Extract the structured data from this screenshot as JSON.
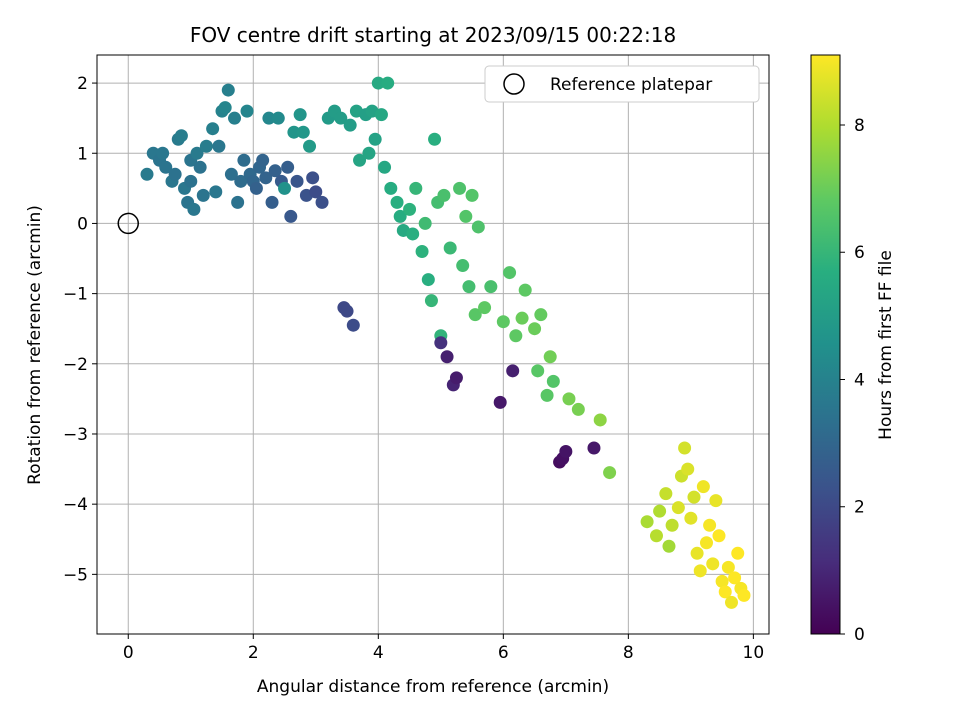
{
  "chart_data": {
    "type": "scatter",
    "title": "FOV centre drift starting at 2023/09/15 00:22:18",
    "xlabel": "Angular distance from reference (arcmin)",
    "ylabel": "Rotation from reference (arcmin)",
    "xlim": [
      -0.5,
      10.25
    ],
    "ylim": [
      -5.85,
      2.4
    ],
    "xticks": [
      0,
      2,
      4,
      6,
      8,
      10
    ],
    "yticks": [
      2,
      1,
      0,
      -1,
      -2,
      -3,
      -4,
      -5
    ],
    "grid": true,
    "legend": {
      "position": "top-right",
      "entries": [
        "Reference platepar"
      ]
    },
    "reference_point": {
      "x": 0,
      "y": 0
    },
    "colorbar": {
      "label": "Hours from first FF file",
      "range": [
        0,
        9.1
      ],
      "ticks": [
        0,
        2,
        4,
        6,
        8
      ],
      "colormap": "viridis"
    },
    "points": [
      [
        0.3,
        0.7,
        3.7
      ],
      [
        0.4,
        1.0,
        3.6
      ],
      [
        0.5,
        0.9,
        3.5
      ],
      [
        0.55,
        1.0,
        3.6
      ],
      [
        0.6,
        0.8,
        3.5
      ],
      [
        0.7,
        0.6,
        3.6
      ],
      [
        0.75,
        0.7,
        3.4
      ],
      [
        0.8,
        1.2,
        3.7
      ],
      [
        0.85,
        1.25,
        3.8
      ],
      [
        0.9,
        0.5,
        3.6
      ],
      [
        0.95,
        0.3,
        3.5
      ],
      [
        1.0,
        0.9,
        3.5
      ],
      [
        1.0,
        0.6,
        3.4
      ],
      [
        1.05,
        0.2,
        3.6
      ],
      [
        1.1,
        1.0,
        3.7
      ],
      [
        1.15,
        0.8,
        3.4
      ],
      [
        1.2,
        0.4,
        3.5
      ],
      [
        1.25,
        1.1,
        3.8
      ],
      [
        1.35,
        1.35,
        3.9
      ],
      [
        1.4,
        0.45,
        3.6
      ],
      [
        1.45,
        1.1,
        3.6
      ],
      [
        1.5,
        1.6,
        4.0
      ],
      [
        1.55,
        1.65,
        4.1
      ],
      [
        1.6,
        1.9,
        3.9
      ],
      [
        1.65,
        0.7,
        3.3
      ],
      [
        1.7,
        1.5,
        3.9
      ],
      [
        1.75,
        0.3,
        3.4
      ],
      [
        1.8,
        0.6,
        3.2
      ],
      [
        1.85,
        0.9,
        3.2
      ],
      [
        1.9,
        1.6,
        4.1
      ],
      [
        1.95,
        0.7,
        3.1
      ],
      [
        2.0,
        0.6,
        3.0
      ],
      [
        2.05,
        0.5,
        2.8
      ],
      [
        2.1,
        0.8,
        3.0
      ],
      [
        2.15,
        0.9,
        2.9
      ],
      [
        2.2,
        0.65,
        2.9
      ],
      [
        2.25,
        1.5,
        4.2
      ],
      [
        2.3,
        0.3,
        2.7
      ],
      [
        2.35,
        0.75,
        2.8
      ],
      [
        2.4,
        1.5,
        4.3
      ],
      [
        2.45,
        0.6,
        2.6
      ],
      [
        2.5,
        0.5,
        4.6
      ],
      [
        2.55,
        0.8,
        2.7
      ],
      [
        2.6,
        0.1,
        2.5
      ],
      [
        2.65,
        1.3,
        4.7
      ],
      [
        2.7,
        0.6,
        2.4
      ],
      [
        2.75,
        1.55,
        4.7
      ],
      [
        2.8,
        1.3,
        4.8
      ],
      [
        2.85,
        0.4,
        2.3
      ],
      [
        2.9,
        1.1,
        4.9
      ],
      [
        2.95,
        0.65,
        2.2
      ],
      [
        3.0,
        0.45,
        2.1
      ],
      [
        3.1,
        0.3,
        2.2
      ],
      [
        3.2,
        1.5,
        4.9
      ],
      [
        3.3,
        1.6,
        5.0
      ],
      [
        3.4,
        1.5,
        5.0
      ],
      [
        3.45,
        -1.2,
        2.0
      ],
      [
        3.5,
        -1.25,
        2.0
      ],
      [
        3.55,
        1.4,
        5.0
      ],
      [
        3.6,
        -1.45,
        2.1
      ],
      [
        3.65,
        1.6,
        5.2
      ],
      [
        3.7,
        0.9,
        5.3
      ],
      [
        3.8,
        1.55,
        5.1
      ],
      [
        3.85,
        1.0,
        5.3
      ],
      [
        3.9,
        1.6,
        5.2
      ],
      [
        3.95,
        1.2,
        5.2
      ],
      [
        4.0,
        2.0,
        5.5
      ],
      [
        4.05,
        1.55,
        5.4
      ],
      [
        4.1,
        0.8,
        5.4
      ],
      [
        4.15,
        2.0,
        5.6
      ],
      [
        4.2,
        0.5,
        5.6
      ],
      [
        4.3,
        0.3,
        5.7
      ],
      [
        4.35,
        0.1,
        5.6
      ],
      [
        4.4,
        -0.1,
        5.5
      ],
      [
        4.5,
        0.2,
        5.8
      ],
      [
        4.55,
        -0.15,
        5.7
      ],
      [
        4.6,
        0.5,
        6.0
      ],
      [
        4.7,
        -0.4,
        5.8
      ],
      [
        4.75,
        0.0,
        6.2
      ],
      [
        4.8,
        -0.8,
        5.7
      ],
      [
        4.85,
        -1.1,
        6.0
      ],
      [
        4.9,
        1.2,
        5.7
      ],
      [
        4.95,
        0.3,
        6.3
      ],
      [
        5.0,
        -1.6,
        5.9
      ],
      [
        5.0,
        -1.7,
        1.3
      ],
      [
        5.05,
        0.4,
        6.4
      ],
      [
        5.1,
        -1.9,
        0.8
      ],
      [
        5.15,
        -0.35,
        6.1
      ],
      [
        5.2,
        -2.3,
        0.9
      ],
      [
        5.25,
        -2.2,
        0.7
      ],
      [
        5.3,
        0.5,
        6.5
      ],
      [
        5.35,
        -0.6,
        6.3
      ],
      [
        5.4,
        0.1,
        6.6
      ],
      [
        5.45,
        -0.9,
        6.3
      ],
      [
        5.5,
        0.4,
        6.6
      ],
      [
        5.55,
        -1.3,
        6.7
      ],
      [
        5.6,
        -0.05,
        6.5
      ],
      [
        5.7,
        -1.2,
        6.8
      ],
      [
        5.8,
        -0.9,
        6.4
      ],
      [
        5.95,
        -2.55,
        0.6
      ],
      [
        6.0,
        -1.4,
        6.8
      ],
      [
        6.1,
        -0.7,
        6.6
      ],
      [
        6.15,
        -2.1,
        0.8
      ],
      [
        6.2,
        -1.6,
        6.8
      ],
      [
        6.3,
        -1.35,
        7.0
      ],
      [
        6.35,
        -0.95,
        6.8
      ],
      [
        6.5,
        -1.5,
        7.0
      ],
      [
        6.55,
        -2.1,
        6.7
      ],
      [
        6.6,
        -1.3,
        6.9
      ],
      [
        6.7,
        -2.45,
        6.7
      ],
      [
        6.75,
        -1.9,
        7.1
      ],
      [
        6.8,
        -2.25,
        6.6
      ],
      [
        6.9,
        -3.4,
        0.3
      ],
      [
        6.95,
        -3.35,
        0.4
      ],
      [
        7.0,
        -3.25,
        0.5
      ],
      [
        7.05,
        -2.5,
        7.2
      ],
      [
        7.2,
        -2.65,
        7.2
      ],
      [
        7.45,
        -3.2,
        0.6
      ],
      [
        7.55,
        -2.8,
        7.5
      ],
      [
        7.7,
        -3.55,
        7.3
      ],
      [
        8.3,
        -4.25,
        7.9
      ],
      [
        8.45,
        -4.45,
        8.1
      ],
      [
        8.5,
        -4.1,
        8.0
      ],
      [
        8.6,
        -3.85,
        8.3
      ],
      [
        8.65,
        -4.6,
        7.8
      ],
      [
        8.7,
        -4.3,
        8.2
      ],
      [
        8.8,
        -4.05,
        8.6
      ],
      [
        8.85,
        -3.6,
        8.4
      ],
      [
        8.9,
        -3.2,
        8.5
      ],
      [
        8.95,
        -3.5,
        8.6
      ],
      [
        9.0,
        -4.2,
        8.7
      ],
      [
        9.05,
        -3.9,
        8.5
      ],
      [
        9.1,
        -4.7,
        8.8
      ],
      [
        9.15,
        -4.95,
        8.9
      ],
      [
        9.2,
        -3.75,
        8.9
      ],
      [
        9.25,
        -4.55,
        9.0
      ],
      [
        9.3,
        -4.3,
        9.0
      ],
      [
        9.35,
        -4.85,
        8.9
      ],
      [
        9.4,
        -3.95,
        8.8
      ],
      [
        9.45,
        -4.45,
        9.1
      ],
      [
        9.5,
        -5.1,
        9.0
      ],
      [
        9.55,
        -5.25,
        9.1
      ],
      [
        9.6,
        -4.9,
        9.0
      ],
      [
        9.65,
        -5.4,
        8.9
      ],
      [
        9.7,
        -5.05,
        9.1
      ],
      [
        9.75,
        -4.7,
        9.1
      ],
      [
        9.8,
        -5.2,
        9.0
      ],
      [
        9.85,
        -5.3,
        9.1
      ]
    ]
  }
}
